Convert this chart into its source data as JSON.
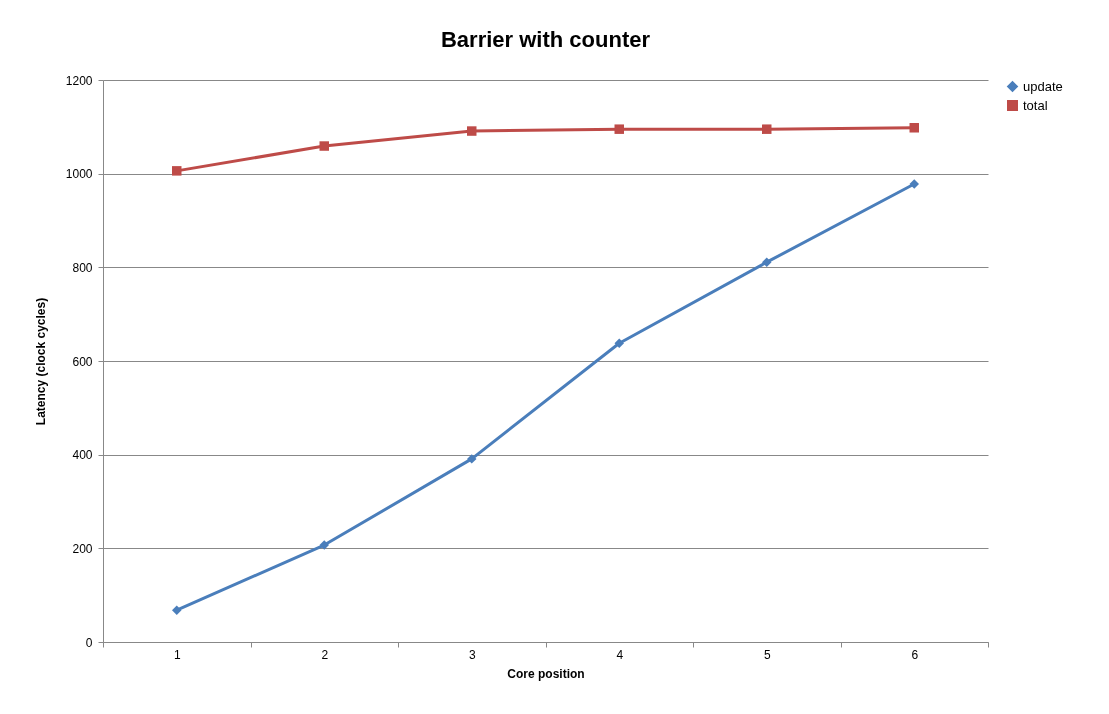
{
  "chart_data": {
    "type": "line",
    "title": "Barrier with counter",
    "xlabel": "Core position",
    "ylabel": "Latency (clock cycles)",
    "categories": [
      "1",
      "2",
      "3",
      "4",
      "5",
      "6"
    ],
    "series": [
      {
        "name": "update",
        "color": "#4a7ebb",
        "marker": "diamond",
        "values": [
          68,
          207,
          391,
          638,
          811,
          978
        ]
      },
      {
        "name": "total",
        "color": "#be4b48",
        "marker": "square",
        "values": [
          1006,
          1059,
          1091,
          1095,
          1095,
          1098
        ]
      }
    ],
    "ylim": [
      0,
      1200
    ],
    "yticks": [
      0,
      200,
      400,
      600,
      800,
      1000,
      1200
    ],
    "grid": "y",
    "legend": "right",
    "line_style": "solid"
  }
}
